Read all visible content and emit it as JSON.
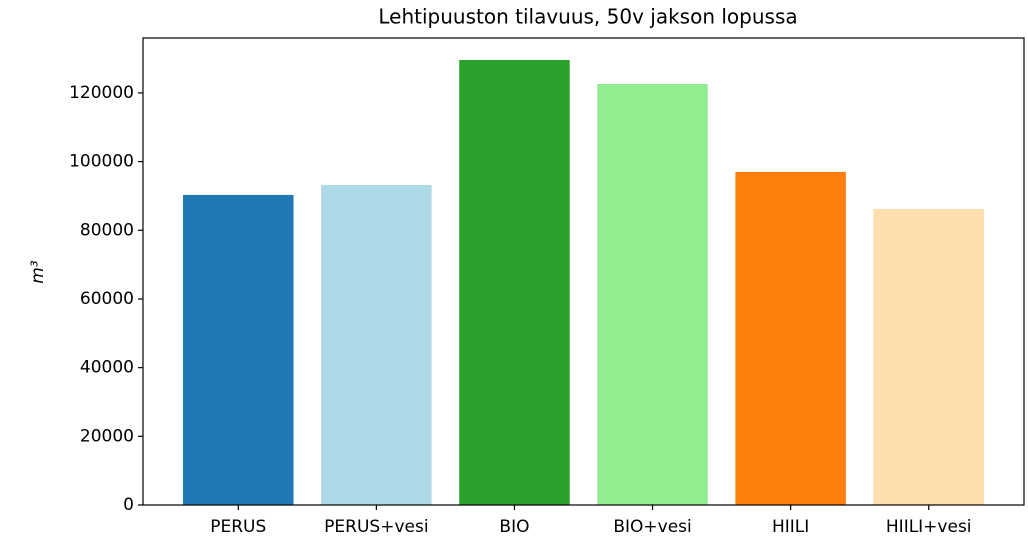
{
  "chart_data": {
    "type": "bar",
    "title": "Lehtipuuston tilavuus, 50v jakson lopussa",
    "ylabel": "m³",
    "categories": [
      "PERUS",
      "PERUS+vesi",
      "BIO",
      "BIO+vesi",
      "HIILI",
      "HIILI+vesi"
    ],
    "values": [
      90300,
      93200,
      129600,
      122600,
      97000,
      86200
    ],
    "colors": [
      "#1f77b4",
      "#add8e6",
      "#2ca02c",
      "#90ee90",
      "#ff7f0e",
      "#ffdead"
    ],
    "ylim": [
      0,
      136000
    ],
    "yticks": [
      0,
      20000,
      40000,
      60000,
      80000,
      100000,
      120000
    ],
    "grid": false
  }
}
